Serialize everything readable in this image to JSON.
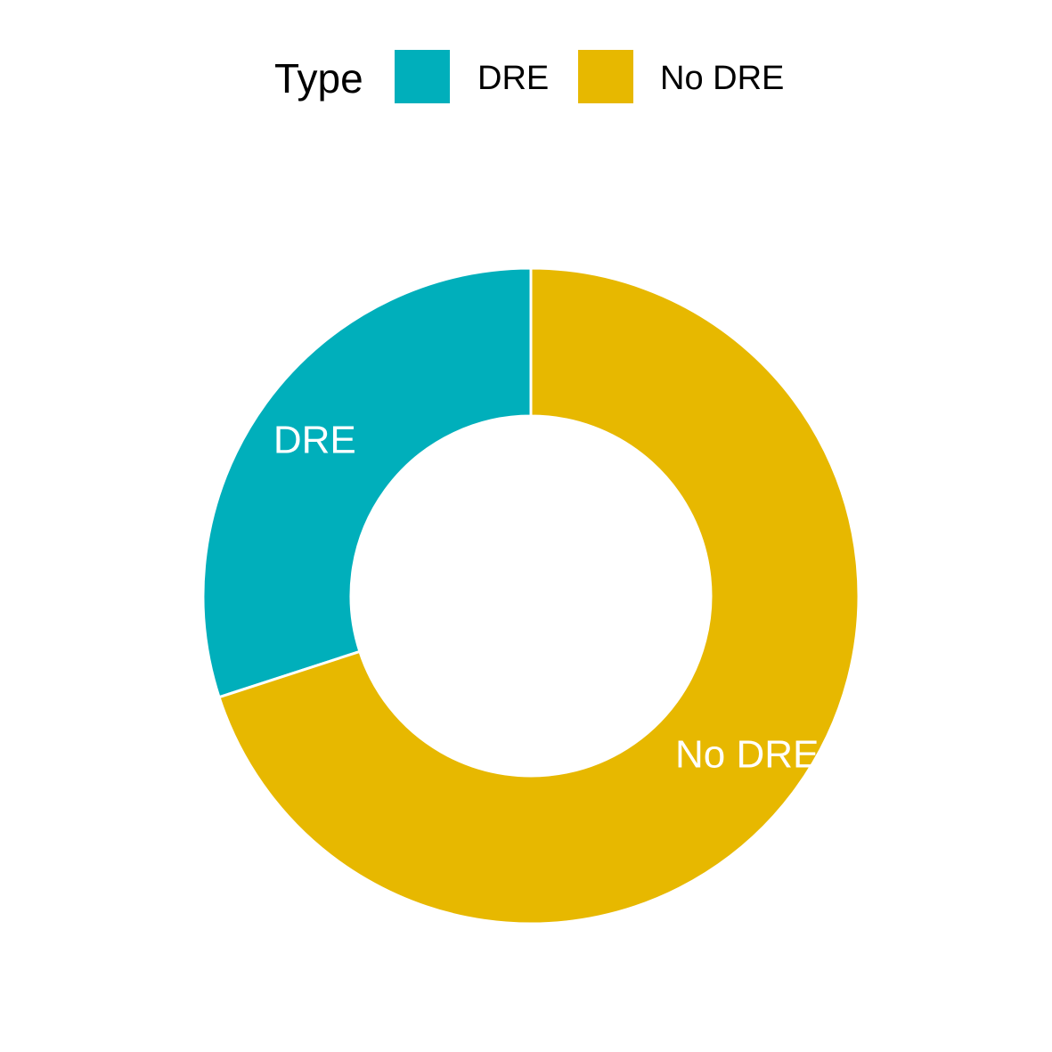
{
  "chart_data": {
    "type": "pie",
    "variant": "donut",
    "legend": {
      "title": "Type",
      "placement": "top",
      "entries": [
        {
          "label": "DRE",
          "color": "#00AFBB"
        },
        {
          "label": "No DRE",
          "color": "#E7B800"
        }
      ]
    },
    "categories": [
      "DRE",
      "No DRE"
    ],
    "values": [
      30,
      70
    ],
    "colors": [
      "#00AFBB",
      "#E7B800"
    ],
    "slice_labels": [
      "DRE",
      "No DRE"
    ],
    "title": "",
    "xlabel": "",
    "ylabel": "",
    "grid": false
  }
}
